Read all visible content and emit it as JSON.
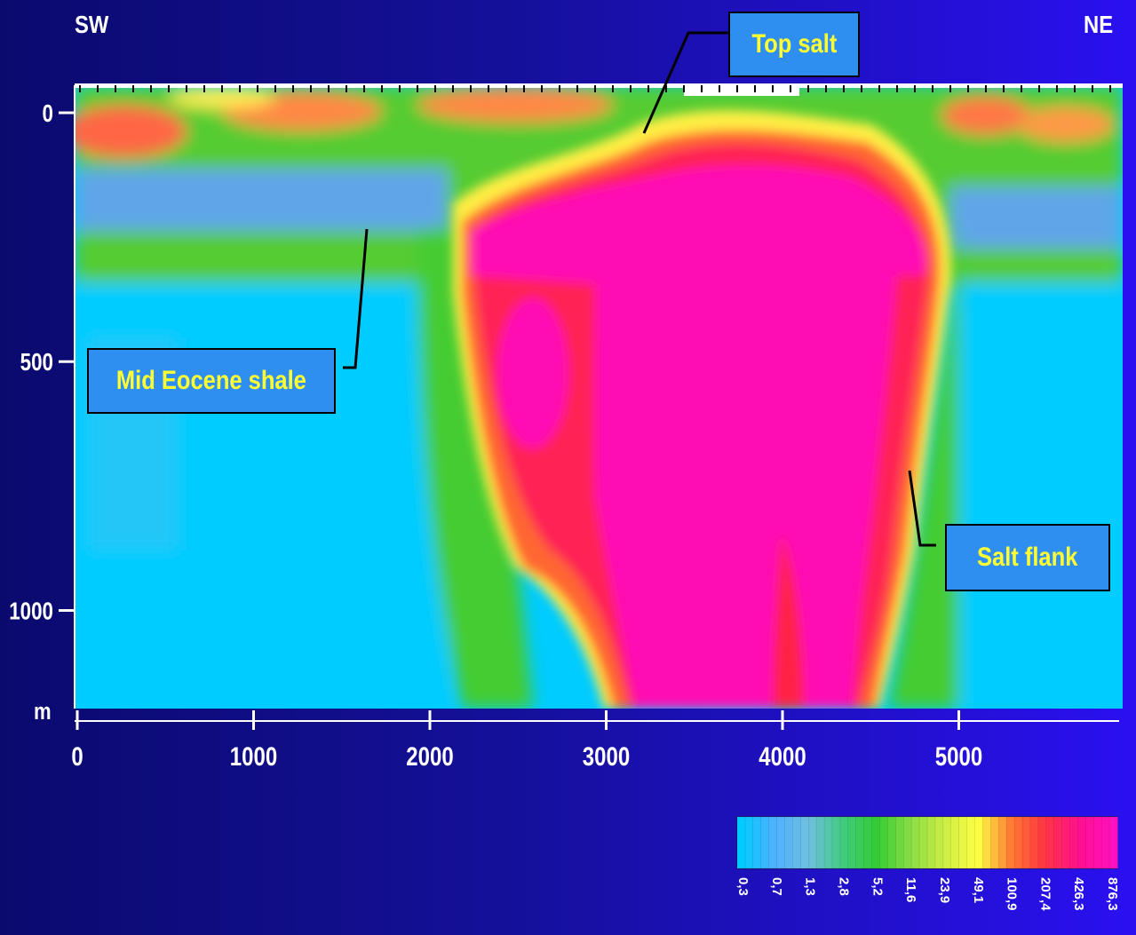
{
  "chart_data": {
    "type": "heatmap",
    "title": "",
    "xlabel": "",
    "ylabel": "m",
    "direction_left": "SW",
    "direction_right": "NE",
    "xlim": [
      0,
      5900
    ],
    "ylim": [
      1200,
      -50
    ],
    "x_ticks": [
      0,
      1000,
      2000,
      3000,
      4000,
      5000
    ],
    "y_ticks": [
      0,
      500,
      1000
    ],
    "y_unit_label": "m",
    "colorbar": {
      "labels": [
        "0,3",
        "0,7",
        "1,3",
        "2,8",
        "5,2",
        "11,6",
        "23,9",
        "49,1",
        "100,9",
        "207,4",
        "426,3",
        "876,3"
      ],
      "colors": [
        "#00ccff",
        "#4fb0ff",
        "#6fc0e0",
        "#40cc80",
        "#33cc33",
        "#88dd44",
        "#ccee44",
        "#ffff44",
        "#ff7733",
        "#ff3344",
        "#ff1090",
        "#ff10c0"
      ]
    },
    "annotations": [
      {
        "label": "Top salt",
        "x": 3200,
        "y": 40
      },
      {
        "label": "Mid Eocene shale",
        "x": 1650,
        "y": 230
      },
      {
        "label": "Salt flank",
        "x": 4720,
        "y": 720
      }
    ]
  }
}
